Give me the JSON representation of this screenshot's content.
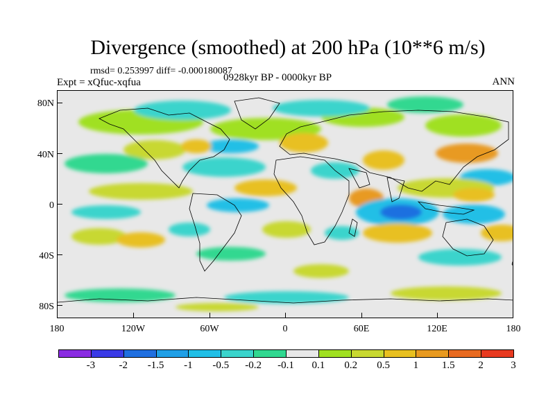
{
  "title": "Divergence (smoothed) at 200 hPa (10**6 m/s)",
  "stats": "rmsd= 0.253997 diff= -0.000180087",
  "experiment": "Expt = xQfuc-xqfua",
  "period": "0928kyr BP - 0000kyr BP",
  "season": "ANN",
  "y_labels": [
    "80N",
    "40N",
    "0",
    "40S",
    "80S"
  ],
  "x_labels": [
    "180",
    "120W",
    "60W",
    "0",
    "60E",
    "120E",
    "180"
  ],
  "colorbar": {
    "labels": [
      "-3",
      "-2",
      "-1.5",
      "-1",
      "-0.5",
      "-0.2",
      "-0.1",
      "0.1",
      "0.2",
      "0.5",
      "1",
      "1.5",
      "2",
      "3"
    ],
    "colors": [
      "#8a2be2",
      "#3a3ae6",
      "#1f6fe0",
      "#1f9fe6",
      "#20bfe6",
      "#3ad4cc",
      "#30d890",
      "#e8e8e8",
      "#a0e020",
      "#c8d830",
      "#e8c020",
      "#e89a20",
      "#e86a20",
      "#e83a20"
    ]
  },
  "map_data": {
    "field": "200 hPa divergence difference (smoothed)",
    "units": "10**6 m/s",
    "lon_range": [
      -180,
      180
    ],
    "lat_range": [
      -90,
      90
    ],
    "colors": {
      "ocean_background": "#e8e8e8",
      "coastline": "#000000"
    }
  }
}
